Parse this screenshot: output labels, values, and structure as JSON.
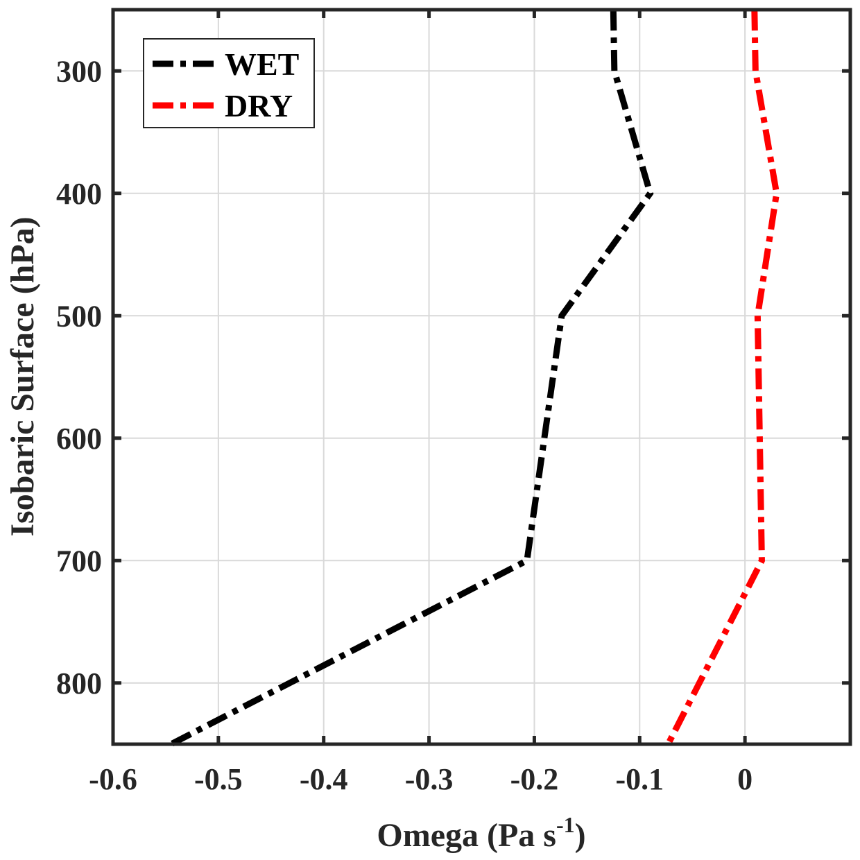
{
  "chart_data": {
    "type": "line",
    "title": "",
    "xlabel": "Omega (Pa s",
    "xlabel_sup": "-1",
    "xlabel_close": ")",
    "ylabel": "Isobaric Surface (hPa)",
    "xlim": [
      -0.6,
      0.1
    ],
    "ylim": [
      250,
      850
    ],
    "y_reversed": true,
    "grid": true,
    "legend_position": "top-left",
    "xticks": [
      -0.6,
      -0.5,
      -0.4,
      -0.3,
      -0.2,
      -0.1,
      0
    ],
    "xtick_labels": [
      "-0.6",
      "-0.5",
      "-0.4",
      "-0.3",
      "-0.2",
      "-0.1",
      "0"
    ],
    "yticks": [
      300,
      400,
      500,
      600,
      700,
      800
    ],
    "ytick_labels": [
      "300",
      "400",
      "500",
      "600",
      "700",
      "800"
    ],
    "series": [
      {
        "name": "WET",
        "color": "#000000",
        "style": "dash-dot",
        "y": [
          250,
          300,
          400,
          500,
          700,
          850
        ],
        "x": [
          -0.125,
          -0.124,
          -0.09,
          -0.174,
          -0.207,
          -0.545
        ]
      },
      {
        "name": "DRY",
        "color": "#ff0000",
        "style": "dash-dot",
        "y": [
          250,
          300,
          400,
          500,
          700,
          850
        ],
        "x": [
          0.009,
          0.01,
          0.03,
          0.012,
          0.016,
          -0.073
        ]
      }
    ]
  }
}
